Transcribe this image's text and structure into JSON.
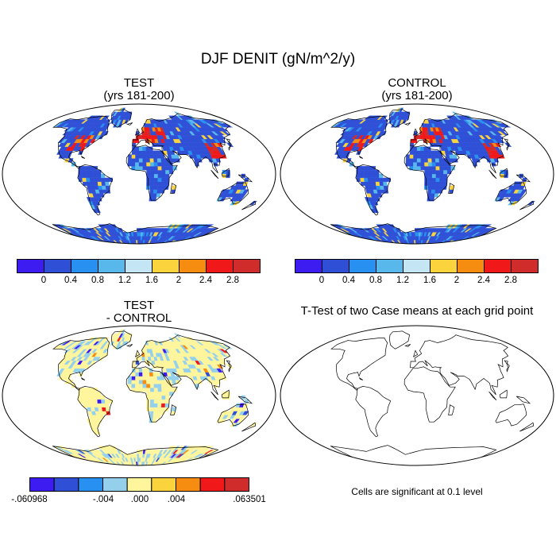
{
  "figure": {
    "title": "DJF DENIT (gN/m^2/y)"
  },
  "panels": [
    {
      "id": "test",
      "title_lines": [
        "TEST",
        "(yrs 181-200)"
      ],
      "field": "absolute"
    },
    {
      "id": "control",
      "title_lines": [
        "CONTROL",
        "(yrs 181-200)"
      ],
      "field": "absolute"
    },
    {
      "id": "difference",
      "title_lines": [
        "TEST",
        "- CONTROL"
      ],
      "field": "difference"
    },
    {
      "id": "ttest",
      "title_lines": [
        "T-Test of two Case means at each grid point"
      ],
      "field": "none"
    }
  ],
  "colorbars": {
    "absolute": {
      "colors": [
        "#3d1cf2",
        "#2e4fd6",
        "#2890f0",
        "#58b8ec",
        "#c4e6f4",
        "#fbd33c",
        "#f68c10",
        "#f01818",
        "#d02c2c"
      ],
      "labels": [
        "0",
        "0.4",
        "0.8",
        "1.2",
        "1.6",
        "2",
        "2.4",
        "2.8"
      ]
    },
    "difference": {
      "colors": [
        "#3d1cf2",
        "#2e4fd6",
        "#2890f0",
        "#94d0ec",
        "#fff59c",
        "#fbd33c",
        "#f68c10",
        "#f01818",
        "#d02c2c"
      ],
      "labels": [
        "-.060968",
        "-.004",
        ".000",
        ".004",
        ".063501"
      ]
    }
  },
  "ttest_note": "Cells are significant at 0.1 level"
}
